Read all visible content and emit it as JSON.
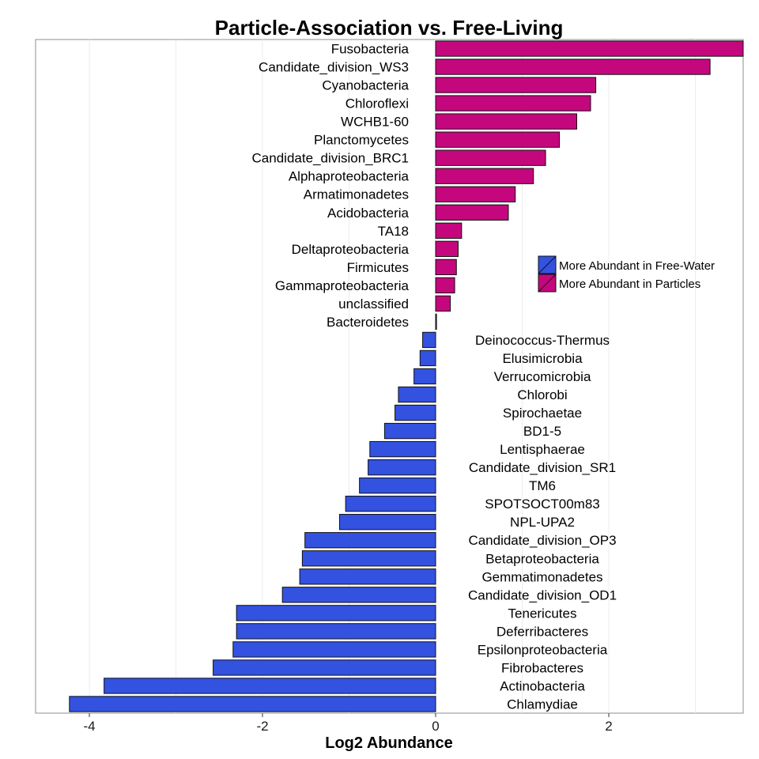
{
  "chart_data": {
    "type": "bar",
    "orientation": "horizontal",
    "title": "Particle-Association vs. Free-Living",
    "xlabel": "Log2 Abundance",
    "ylabel": "",
    "xlim": [
      -4.6,
      3.6
    ],
    "xticks": [
      -4,
      -2,
      0,
      2
    ],
    "grid": true,
    "legend_position": "right-middle",
    "colors": {
      "free_water": "#3352E0",
      "particles": "#C5077E"
    },
    "legend": [
      {
        "key": "free_water",
        "label": "More Abundant in Free-Water"
      },
      {
        "key": "particles",
        "label": "More Abundant in Particles"
      }
    ],
    "categories": [
      "Fusobacteria",
      "Candidate_division_WS3",
      "Cyanobacteria",
      "Chloroflexi",
      "WCHB1-60",
      "Planctomycetes",
      "Candidate_division_BRC1",
      "Alphaproteobacteria",
      "Armatimonadetes",
      "Acidobacteria",
      "TA18",
      "Deltaproteobacteria",
      "Firmicutes",
      "Gammaproteobacteria",
      "unclassified",
      "Bacteroidetes",
      "Deinococcus-Thermus",
      "Elusimicrobia",
      "Verrucomicrobia",
      "Chlorobi",
      "Spirochaetae",
      "BD1-5",
      "Lentisphaerae",
      "Candidate_division_SR1",
      "TM6",
      "SPOTSOCT00m83",
      "NPL-UPA2",
      "Candidate_division_OP3",
      "Betaproteobacteria",
      "Gemmatimonadetes",
      "Candidate_division_OD1",
      "Tenericutes",
      "Deferribacteres",
      "Epsilonproteobacteria",
      "Fibrobacteres",
      "Actinobacteria",
      "Chlamydiae"
    ],
    "values": [
      3.6,
      3.17,
      1.85,
      1.79,
      1.63,
      1.43,
      1.27,
      1.13,
      0.92,
      0.84,
      0.3,
      0.26,
      0.24,
      0.22,
      0.17,
      0.01,
      -0.15,
      -0.18,
      -0.25,
      -0.43,
      -0.47,
      -0.59,
      -0.76,
      -0.78,
      -0.88,
      -1.04,
      -1.11,
      -1.51,
      -1.54,
      -1.57,
      -1.77,
      -2.3,
      -2.3,
      -2.34,
      -2.57,
      -3.83,
      -4.23
    ]
  }
}
